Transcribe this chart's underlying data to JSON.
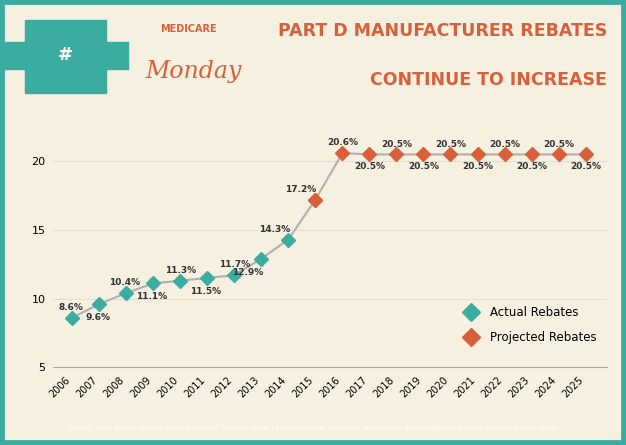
{
  "actual_years": [
    2006,
    2007,
    2008,
    2009,
    2010,
    2011,
    2012,
    2013,
    2014,
    2015
  ],
  "actual_values": [
    8.6,
    9.6,
    10.4,
    11.1,
    11.3,
    11.5,
    11.7,
    12.9,
    14.3,
    17.2
  ],
  "projected_years": [
    2015,
    2016,
    2017,
    2018,
    2019,
    2020,
    2021,
    2022,
    2023,
    2024,
    2025
  ],
  "projected_values": [
    17.2,
    20.6,
    20.5,
    20.5,
    20.5,
    20.5,
    20.5,
    20.5,
    20.5,
    20.5,
    20.5
  ],
  "actual_labels": [
    "8.6%",
    "9.6%",
    "10.4%",
    "11.1%",
    "11.3%",
    "11.5%",
    "11.7%",
    "12.9%",
    "14.3%",
    "17.2%"
  ],
  "actual_label_dx": [
    -0.05,
    -0.05,
    -0.05,
    -0.05,
    0.0,
    -0.05,
    0.0,
    -0.5,
    -0.5,
    -0.55
  ],
  "actual_label_dy": [
    0.42,
    -0.65,
    0.42,
    -0.65,
    0.42,
    -0.65,
    0.42,
    -0.65,
    0.42,
    0.42
  ],
  "actual_color": "#3aada0",
  "projected_color": "#d95f3b",
  "line_color": "#b0b0b0",
  "bg_color": "#f5f0e0",
  "border_color": "#3aada0",
  "title_line1": "PART D MANUFACTURER REBATES",
  "title_line2": "CONTINUE TO INCREASE",
  "title_color": "#d95f3b",
  "ylim": [
    5,
    23
  ],
  "yticks": [
    5,
    10,
    15,
    20
  ],
  "source_text": "Source: 2016 Annual Report of the Boards of Trustees of the Federal Hospital Insurance and Federal Supplementary Medical Insurance Trust Funds",
  "footer_bg": "#3aada0",
  "footer_text_color": "#ffffff"
}
